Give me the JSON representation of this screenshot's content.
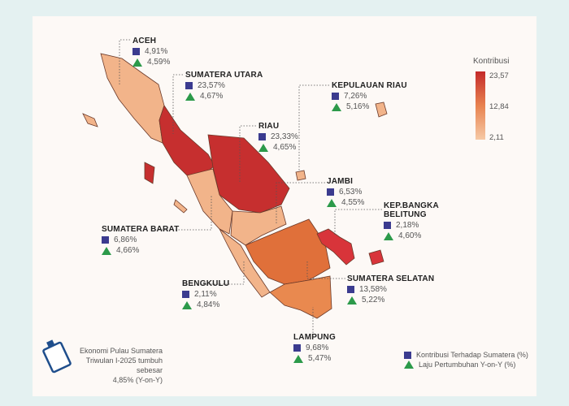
{
  "legend_title": "Kontribusi",
  "scale": {
    "max": "23,57",
    "mid": "12,84",
    "min": "2,11",
    "colors": [
      "#c42a2a",
      "#e8824f",
      "#f6c9a5"
    ]
  },
  "provinces": [
    {
      "name": "ACEH",
      "kontribusi": "4,91%",
      "laju": "4,59%"
    },
    {
      "name": "SUMATERA UTARA",
      "kontribusi": "23,57%",
      "laju": "4,67%"
    },
    {
      "name": "RIAU",
      "kontribusi": "23,33%",
      "laju": "4,65%"
    },
    {
      "name": "KEPULAUAN RIAU",
      "kontribusi": "7,26%",
      "laju": "5,16%"
    },
    {
      "name": "JAMBI",
      "kontribusi": "6,53%",
      "laju": "4,55%"
    },
    {
      "name": "KEP.BANGKA",
      "name2": "BELITUNG",
      "kontribusi": "2,18%",
      "laju": "4,60%"
    },
    {
      "name": "SUMATERA BARAT",
      "kontribusi": "6,86%",
      "laju": "4,66%"
    },
    {
      "name": "BENGKULU",
      "kontribusi": "2,11%",
      "laju": "4,84%"
    },
    {
      "name": "SUMATERA SELATAN",
      "kontribusi": "13,58%",
      "laju": "5,22%"
    },
    {
      "name": "LAMPUNG",
      "kontribusi": "9,68%",
      "laju": "5,47%"
    }
  ],
  "summary": {
    "line1": "Ekonomi Pulau Sumatera",
    "line2": "Triwulan I-2025 tumbuh sebesar",
    "line3": "4,85% (Y-on-Y)"
  },
  "key": {
    "square": "Kontribusi Terhadap Sumatera (%)",
    "triangle": "Laju Pertumbuhan Y-on-Y (%)"
  }
}
